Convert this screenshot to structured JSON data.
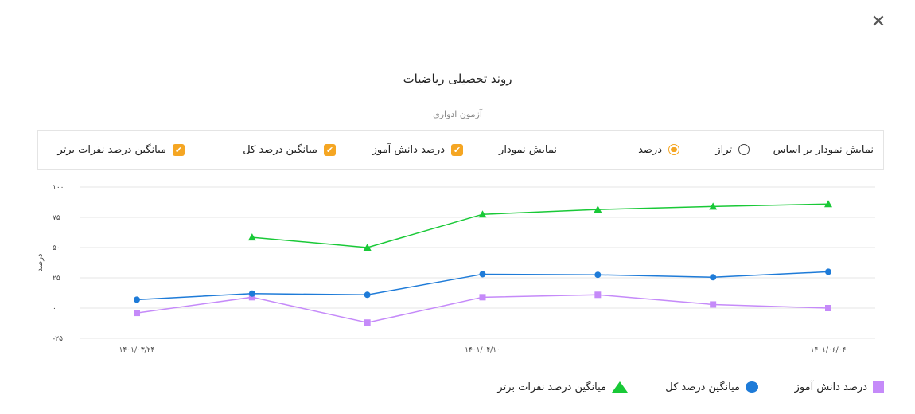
{
  "close_icon": "✕",
  "chart_data": {
    "type": "line",
    "title": "روند تحصیلی ریاضیات",
    "subtitle": "آزمون ادواری",
    "ylabel": "درصد",
    "xlabel": "",
    "ylim": [
      -25,
      100
    ],
    "yticks": [
      -25,
      0,
      25,
      50,
      75,
      100
    ],
    "ytick_labels": [
      "-۲۵",
      "۰",
      "۲۵",
      "۵۰",
      "۷۵",
      "۱۰۰"
    ],
    "x_count": 7,
    "x_tick_labels": [
      {
        "index": 0,
        "label": "۱۴۰۱/۰۳/۲۴"
      },
      {
        "index": 3,
        "label": "۱۴۰۱/۰۴/۱۰"
      },
      {
        "index": 6,
        "label": "۱۴۰۱/۰۶/۰۴"
      }
    ],
    "grid": true,
    "legend_position": "bottom-right",
    "series": [
      {
        "name": "درصد دانش آموز",
        "color": "#c58af9",
        "marker": "square",
        "values": [
          -4,
          9,
          -12,
          9,
          11,
          3,
          0
        ]
      },
      {
        "name": "میانگین درصد کل",
        "color": "#1e7bd8",
        "marker": "circle",
        "values": [
          7,
          12,
          11,
          28,
          27.5,
          25.5,
          30
        ]
      },
      {
        "name": "میانگین درصد نفرات برتر",
        "color": "#19c937",
        "marker": "triangle",
        "values": [
          null,
          58.5,
          50,
          77.5,
          81.5,
          84,
          86
        ]
      }
    ]
  },
  "options": {
    "based_on_label": "نمایش نمودار بر اساس",
    "radio_taraz": "تراز",
    "radio_percent": "درصد",
    "show_chart_label": "نمایش نمودار",
    "check_student": "درصد دانش آموز",
    "check_avg": "میانگین درصد کل",
    "check_top": "میانگین درصد نفرات برتر"
  },
  "legend": [
    {
      "label": "درصد دانش آموز",
      "color": "#c58af9",
      "icon": "square-icon"
    },
    {
      "label": "میانگین درصد کل",
      "color": "#1e7bd8",
      "icon": "circle-icon"
    },
    {
      "label": "میانگین درصد نفرات برتر",
      "color": "#19c937",
      "icon": "triangle-icon"
    }
  ],
  "accent_color": "#f5a623"
}
